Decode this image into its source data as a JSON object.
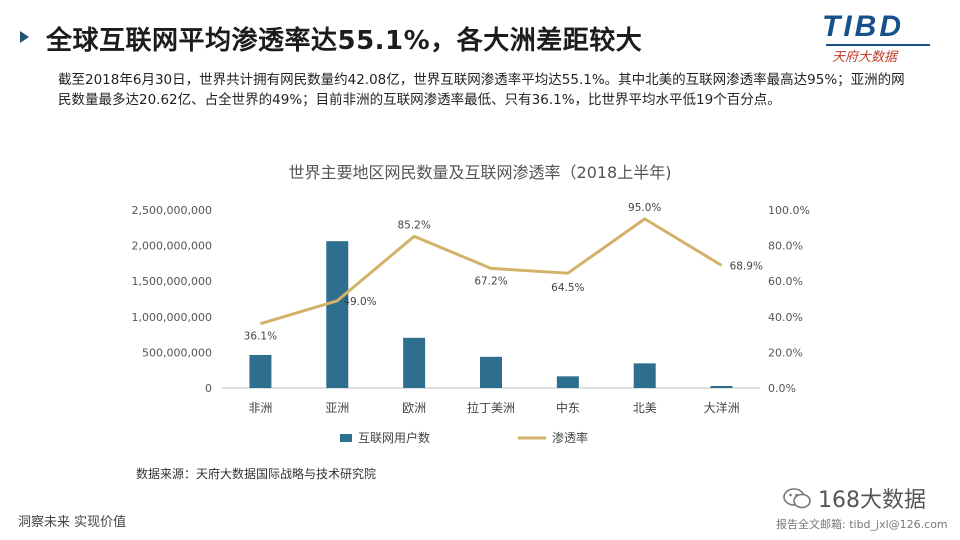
{
  "header": {
    "title": "全球互联网平均渗透率达55.1%，各大洲差距较大",
    "logo_text": "TIBD",
    "logo_sub": "天府大数据"
  },
  "intro": "截至2018年6月30日，世界共计拥有网民数量约42.08亿，世界互联网渗透率平均达55.1%。其中北美的互联网渗透率最高达95%；亚洲的网民数量最多达20.62亿、占全世界的49%；目前非洲的互联网渗透率最低、只有36.1%，比世界平均水平低19个百分点。",
  "colors": {
    "bar": "#2e6e8e",
    "line": "#d4b168",
    "axis_text": "#555555",
    "arrow": "#1f5473"
  },
  "chart_data": {
    "type": "bar+line",
    "title": "世界主要地区网民数量及互联网渗透率（2018上半年)",
    "categories": [
      "非洲",
      "亚洲",
      "欧洲",
      "拉丁美洲",
      "中东",
      "北美",
      "大洋洲"
    ],
    "series": [
      {
        "name": "互联网用户数",
        "type": "bar",
        "axis": "left",
        "values": [
          464000000,
          2062000000,
          705000000,
          438000000,
          164000000,
          346000000,
          28000000
        ]
      },
      {
        "name": "渗透率",
        "type": "line",
        "axis": "right",
        "values": [
          36.1,
          49.0,
          85.2,
          67.2,
          64.5,
          95.0,
          68.9
        ],
        "labels": [
          "36.1%",
          "49.0%",
          "85.2%",
          "67.2%",
          "64.5%",
          "95.0%",
          "68.9%"
        ]
      }
    ],
    "y_left": {
      "min": 0,
      "max": 2500000000,
      "ticks": [
        "0",
        "500,000,000",
        "1,000,000,000",
        "1,500,000,000",
        "2,000,000,000",
        "2,500,000,000"
      ]
    },
    "y_right": {
      "min": 0,
      "max": 100,
      "ticks": [
        "0.0%",
        "20.0%",
        "40.0%",
        "60.0%",
        "80.0%",
        "100.0%"
      ]
    },
    "grid": false,
    "legend": "bottom",
    "source": "数据来源：天府大数据国际战略与技术研究院"
  },
  "footer": {
    "slogan": "洞察未来 实现价值",
    "watermark": "168大数据",
    "contact": "报告全文邮箱: tibd_jxl@126.com"
  }
}
